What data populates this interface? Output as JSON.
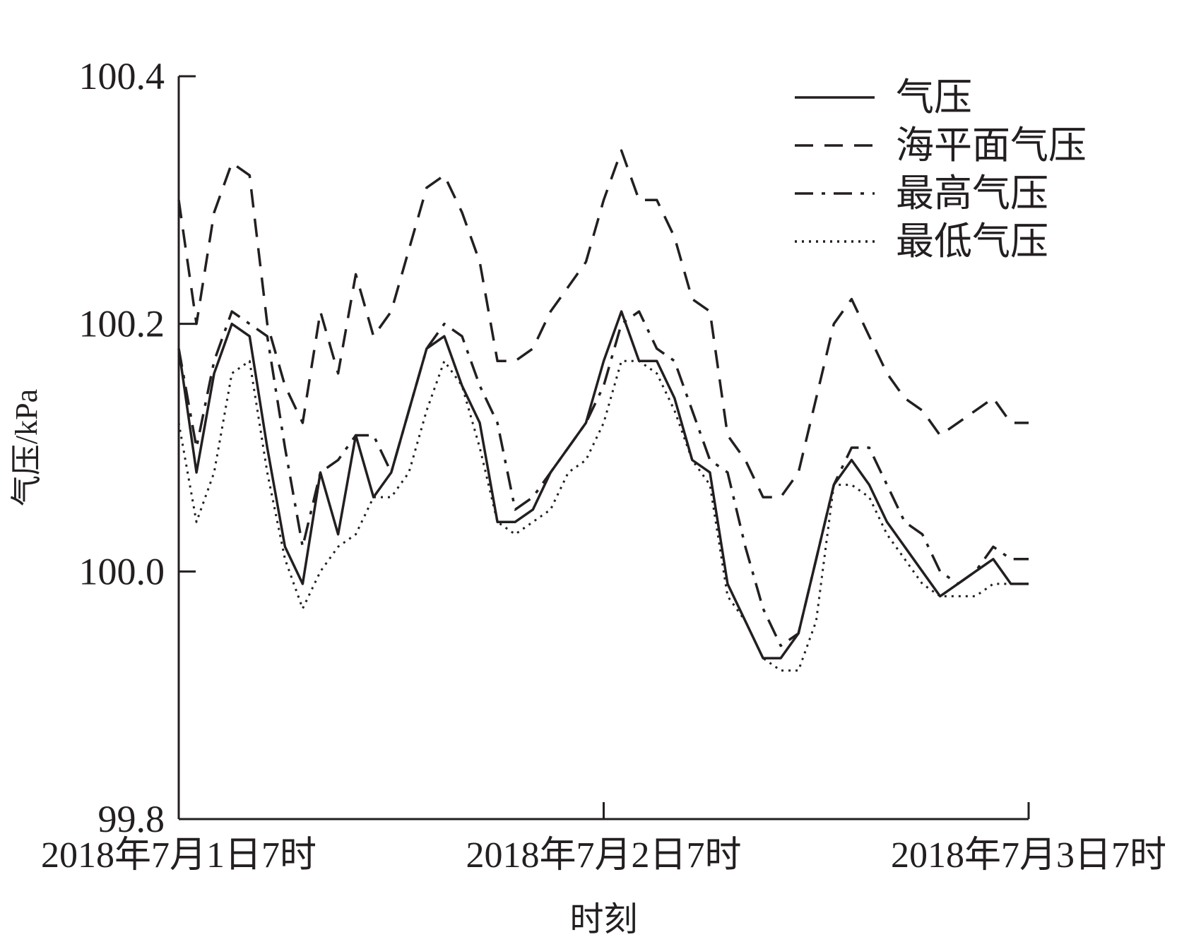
{
  "chart_data": {
    "type": "line",
    "title": "",
    "xlabel": "时刻",
    "ylabel": "气压/kPa",
    "ylim": [
      99.8,
      100.4
    ],
    "yticks": [
      "99.8",
      "100.0",
      "100.2",
      "100.4"
    ],
    "xticks": [
      "2018年7月1日7时",
      "2018年7月2日7时",
      "2018年7月3日7时"
    ],
    "x_hours": [
      0,
      1,
      2,
      3,
      4,
      5,
      6,
      7,
      8,
      9,
      10,
      11,
      12,
      13,
      14,
      15,
      16,
      17,
      18,
      19,
      20,
      21,
      22,
      23,
      24,
      25,
      26,
      27,
      28,
      29,
      30,
      31,
      32,
      33,
      34,
      35,
      36,
      37,
      38,
      39,
      40,
      41,
      42,
      43,
      44,
      45,
      46,
      47,
      48
    ],
    "grid": false,
    "legend_position": "top-right",
    "series": [
      {
        "name": "气压",
        "style": "solid",
        "values": [
          100.18,
          100.08,
          100.16,
          100.2,
          100.19,
          100.1,
          100.02,
          99.99,
          100.08,
          100.03,
          100.11,
          100.06,
          100.08,
          100.13,
          100.18,
          100.19,
          100.15,
          100.12,
          100.04,
          100.04,
          100.05,
          100.08,
          100.1,
          100.12,
          100.17,
          100.21,
          100.17,
          100.17,
          100.14,
          100.09,
          100.08,
          99.99,
          99.96,
          99.93,
          99.93,
          99.95,
          100.01,
          100.07,
          100.09,
          100.07,
          100.04,
          100.02,
          100.0,
          99.98,
          99.99,
          100.0,
          100.01,
          99.99,
          99.99
        ]
      },
      {
        "name": "海平面气压",
        "style": "dashed",
        "values": [
          100.3,
          100.2,
          100.29,
          100.33,
          100.32,
          100.2,
          100.15,
          100.12,
          100.21,
          100.16,
          100.24,
          100.19,
          100.21,
          100.26,
          100.31,
          100.32,
          100.29,
          100.25,
          100.17,
          100.17,
          100.18,
          100.21,
          100.23,
          100.25,
          100.3,
          100.34,
          100.3,
          100.3,
          100.27,
          100.22,
          100.21,
          100.11,
          100.09,
          100.06,
          100.06,
          100.08,
          100.14,
          100.2,
          100.22,
          100.19,
          100.16,
          100.14,
          100.13,
          100.11,
          100.12,
          100.13,
          100.14,
          100.12,
          100.12
        ]
      },
      {
        "name": "最高气压",
        "style": "dashdot",
        "values": [
          100.18,
          100.1,
          100.17,
          100.21,
          100.2,
          100.19,
          100.1,
          100.02,
          100.08,
          100.09,
          100.11,
          100.11,
          100.08,
          100.13,
          100.18,
          100.2,
          100.19,
          100.15,
          100.12,
          100.05,
          100.06,
          100.08,
          100.1,
          100.12,
          100.15,
          100.2,
          100.21,
          100.18,
          100.17,
          100.13,
          100.09,
          100.08,
          100.02,
          99.97,
          99.94,
          99.95,
          100.01,
          100.07,
          100.1,
          100.1,
          100.07,
          100.04,
          100.03,
          100.0,
          99.99,
          100.0,
          100.02,
          100.01,
          100.01
        ]
      },
      {
        "name": "最低气压",
        "style": "dotted",
        "values": [
          100.12,
          100.04,
          100.08,
          100.16,
          100.17,
          100.08,
          100.01,
          99.97,
          100.0,
          100.02,
          100.03,
          100.06,
          100.06,
          100.08,
          100.13,
          100.17,
          100.15,
          100.1,
          100.04,
          100.03,
          100.04,
          100.05,
          100.08,
          100.09,
          100.12,
          100.17,
          100.17,
          100.16,
          100.13,
          100.09,
          100.07,
          99.98,
          99.96,
          99.93,
          99.92,
          99.92,
          99.96,
          100.07,
          100.07,
          100.06,
          100.03,
          100.01,
          99.99,
          99.98,
          99.98,
          99.98,
          99.99,
          99.99,
          99.99
        ]
      }
    ]
  }
}
